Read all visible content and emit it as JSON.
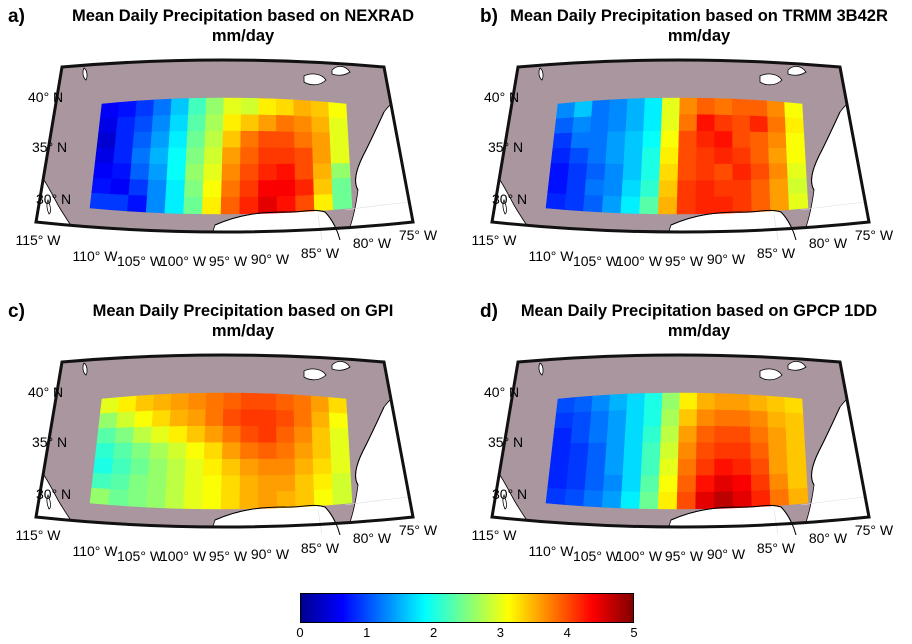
{
  "colors": {
    "land": "#a9969f",
    "border": "#111111",
    "coast": "#000000"
  },
  "lon_labels": [
    "115° W",
    "110° W",
    "105° W",
    "100° W",
    "95° W",
    "90° W",
    "85° W",
    "80° W",
    "75° W"
  ],
  "lat_labels": [
    "40° N",
    "35° N",
    "30° N"
  ],
  "colorbar": {
    "min": 0,
    "max": 5,
    "ticks": [
      "0",
      "1",
      "2",
      "3",
      "4",
      "5"
    ],
    "colormap": "jet"
  },
  "panels": [
    {
      "letter": "a)",
      "title": "Mean Daily Precipitation based on NEXRAD",
      "units": "mm/day",
      "grid": [
        [
          0.6,
          0.7,
          0.9,
          1.2,
          1.6,
          2.2,
          2.6,
          3.0,
          2.9,
          3.2,
          3.3,
          3.5,
          3.4,
          3.1
        ],
        [
          0.5,
          0.8,
          1.0,
          1.3,
          1.7,
          2.3,
          2.7,
          3.2,
          3.4,
          3.6,
          3.8,
          3.7,
          3.5,
          3.0
        ],
        [
          0.4,
          0.8,
          1.1,
          1.4,
          1.8,
          2.4,
          2.8,
          3.4,
          3.8,
          4.0,
          4.0,
          3.8,
          3.6,
          3.0
        ],
        [
          0.5,
          0.8,
          1.2,
          1.5,
          1.9,
          2.5,
          2.9,
          3.6,
          3.9,
          4.1,
          4.1,
          4.0,
          3.6,
          3.0
        ],
        [
          0.6,
          0.7,
          1.1,
          1.4,
          1.9,
          2.6,
          3.0,
          3.7,
          4.0,
          4.2,
          4.3,
          4.0,
          3.5,
          2.6
        ],
        [
          0.7,
          0.6,
          0.9,
          1.3,
          1.8,
          2.5,
          3.1,
          3.8,
          4.1,
          4.4,
          4.4,
          4.2,
          3.4,
          2.4
        ],
        [
          0.9,
          0.9,
          0.7,
          1.3,
          1.8,
          2.4,
          3.2,
          3.9,
          4.2,
          4.5,
          4.3,
          4.0,
          3.2,
          2.4
        ]
      ]
    },
    {
      "letter": "b)",
      "title": "Mean Daily Precipitation based on TRMM 3B42R",
      "units": "mm/day",
      "grid": [
        [
          1.3,
          1.6,
          1.2,
          1.3,
          1.5,
          1.8,
          3.0,
          3.7,
          3.9,
          3.8,
          3.9,
          3.9,
          3.7,
          3.1
        ],
        [
          1.1,
          1.3,
          1.2,
          1.3,
          1.5,
          1.8,
          3.0,
          3.8,
          4.3,
          4.1,
          4.0,
          4.2,
          3.8,
          3.2
        ],
        [
          0.9,
          1.2,
          1.2,
          1.4,
          1.6,
          1.9,
          3.1,
          4.0,
          4.2,
          4.3,
          4.0,
          3.9,
          3.7,
          3.1
        ],
        [
          0.8,
          1.0,
          1.2,
          1.4,
          1.6,
          2.0,
          3.2,
          4.0,
          4.1,
          4.2,
          4.1,
          3.9,
          3.6,
          3.1
        ],
        [
          0.7,
          0.9,
          1.1,
          1.3,
          1.6,
          2.0,
          3.3,
          4.0,
          4.1,
          4.0,
          4.2,
          4.0,
          3.7,
          3.0
        ],
        [
          0.7,
          0.9,
          1.2,
          1.3,
          1.7,
          2.1,
          3.4,
          4.1,
          4.2,
          4.1,
          4.1,
          3.9,
          3.6,
          2.9
        ],
        [
          0.8,
          0.9,
          1.1,
          1.4,
          1.8,
          2.3,
          3.5,
          4.1,
          4.2,
          4.2,
          4.1,
          3.9,
          3.6,
          3.0
        ]
      ]
    },
    {
      "letter": "c)",
      "title": "Mean Daily Precipitation based on GPI",
      "units": "mm/day",
      "grid": [
        [
          3.0,
          3.2,
          3.4,
          3.5,
          3.6,
          3.7,
          3.8,
          3.9,
          4.0,
          4.0,
          3.9,
          3.8,
          3.6,
          3.3
        ],
        [
          2.6,
          2.9,
          3.1,
          3.3,
          3.5,
          3.6,
          3.8,
          4.0,
          4.1,
          4.1,
          4.0,
          3.8,
          3.5,
          3.1
        ],
        [
          2.3,
          2.5,
          2.8,
          3.0,
          3.2,
          3.4,
          3.6,
          3.8,
          4.0,
          4.1,
          3.9,
          3.7,
          3.4,
          3.0
        ],
        [
          2.1,
          2.3,
          2.5,
          2.7,
          2.9,
          3.1,
          3.3,
          3.6,
          3.8,
          3.9,
          3.8,
          3.6,
          3.4,
          3.0
        ],
        [
          2.0,
          2.2,
          2.4,
          2.6,
          2.8,
          3.0,
          3.2,
          3.4,
          3.6,
          3.7,
          3.7,
          3.5,
          3.3,
          3.0
        ],
        [
          2.2,
          2.3,
          2.5,
          2.6,
          2.8,
          3.0,
          3.1,
          3.3,
          3.5,
          3.6,
          3.6,
          3.4,
          3.2,
          2.9
        ],
        [
          2.6,
          2.4,
          2.5,
          2.6,
          2.8,
          3.0,
          3.1,
          3.3,
          3.5,
          3.6,
          3.5,
          3.4,
          3.1,
          2.9
        ]
      ]
    },
    {
      "letter": "d)",
      "title": "Mean Daily Precipitation based on GPCP 1DD",
      "units": "mm/day",
      "grid": [
        [
          1.0,
          1.1,
          1.3,
          1.5,
          1.7,
          2.0,
          2.6,
          3.2,
          3.5,
          3.6,
          3.6,
          3.5,
          3.4,
          3.3
        ],
        [
          0.9,
          1.0,
          1.2,
          1.4,
          1.7,
          2.0,
          2.7,
          3.4,
          3.7,
          3.8,
          3.8,
          3.7,
          3.5,
          3.4
        ],
        [
          0.8,
          1.0,
          1.2,
          1.4,
          1.7,
          2.1,
          2.8,
          3.6,
          3.9,
          4.0,
          4.0,
          3.8,
          3.6,
          3.4
        ],
        [
          0.8,
          0.9,
          1.1,
          1.4,
          1.7,
          2.2,
          2.9,
          3.7,
          4.0,
          4.1,
          4.1,
          3.9,
          3.6,
          3.4
        ],
        [
          0.8,
          0.9,
          1.1,
          1.4,
          1.7,
          2.2,
          3.0,
          3.8,
          4.1,
          4.3,
          4.2,
          4.0,
          3.6,
          3.4
        ],
        [
          0.8,
          0.9,
          1.1,
          1.3,
          1.7,
          2.3,
          3.1,
          3.9,
          4.3,
          4.5,
          4.4,
          4.1,
          3.7,
          3.4
        ],
        [
          0.9,
          1.0,
          1.2,
          1.4,
          1.8,
          2.4,
          3.2,
          4.0,
          4.5,
          4.7,
          4.5,
          4.2,
          3.8,
          3.5
        ]
      ]
    }
  ]
}
